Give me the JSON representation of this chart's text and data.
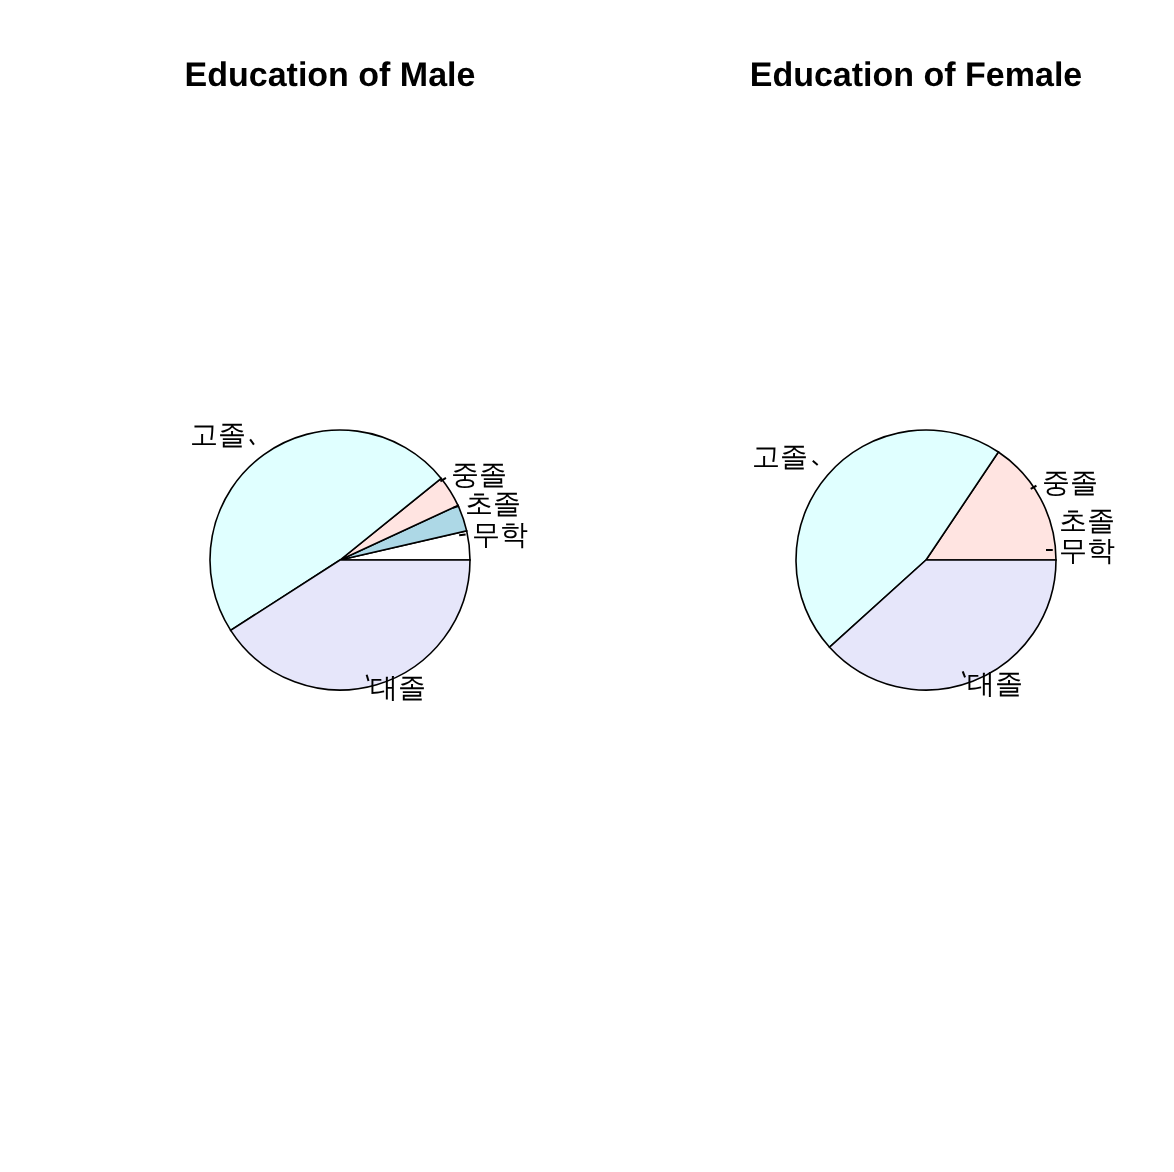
{
  "chart_data": [
    {
      "type": "pie",
      "title": "Education of Male",
      "categories": [
        "무학",
        "초졸",
        "중졸",
        "고졸",
        "대졸"
      ],
      "values": [
        3.6,
        3.3,
        3.9,
        48.3,
        40.9
      ],
      "colors": [
        "#ffffff",
        "#add8e6",
        "#ffe4e1",
        "#e0ffff",
        "#e6e6fa"
      ]
    },
    {
      "type": "pie",
      "title": "Education of Female",
      "categories": [
        "무학",
        "초졸",
        "중졸",
        "고졸",
        "대졸"
      ],
      "values": [
        0,
        0,
        15.6,
        46.1,
        38.3
      ],
      "colors": [
        "#ffffff",
        "#add8e6",
        "#ffe4e1",
        "#e0ffff",
        "#e6e6fa"
      ]
    }
  ]
}
